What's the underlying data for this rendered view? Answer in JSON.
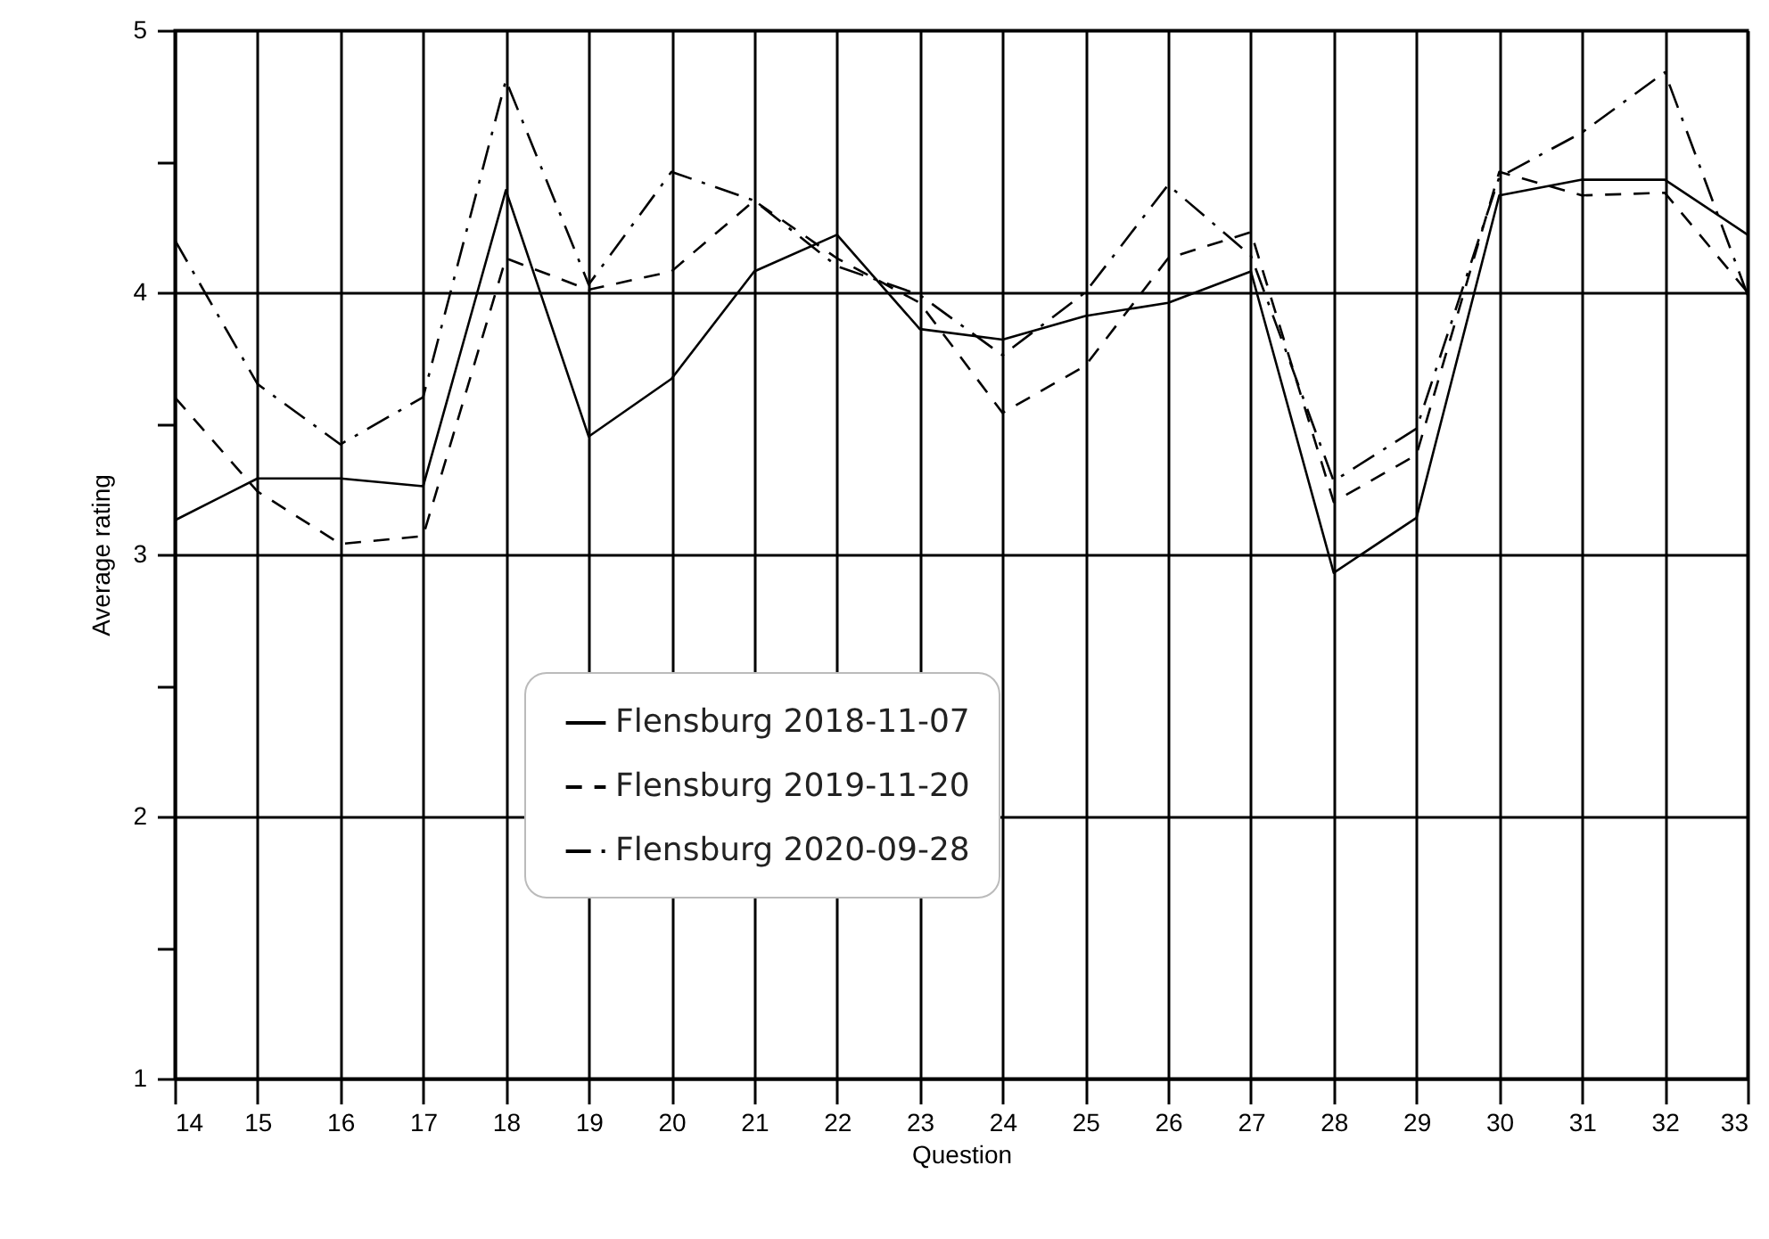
{
  "chart_data": {
    "type": "line",
    "xlabel": "Question",
    "ylabel": "Average rating",
    "x": [
      14,
      15,
      16,
      17,
      18,
      19,
      20,
      21,
      22,
      23,
      24,
      25,
      26,
      27,
      28,
      29,
      30,
      31,
      32,
      33
    ],
    "xlim": [
      14,
      33
    ],
    "xticks": [
      14,
      15,
      16,
      17,
      18,
      19,
      20,
      21,
      22,
      23,
      24,
      25,
      26,
      27,
      28,
      29,
      30,
      31,
      32,
      33
    ],
    "ylim": [
      1,
      5
    ],
    "yticks": [
      1,
      {
        "value": 1.5,
        "label": null
      },
      2,
      {
        "value": 2.5,
        "label": null
      },
      3,
      {
        "value": 3.5,
        "label": null
      },
      4,
      {
        "value": 4.5,
        "label": null
      },
      5
    ],
    "grid": true,
    "legend": "bottom left",
    "marker": "none",
    "series": [
      {
        "name": "Flensburg 2018-11-07",
        "color": "#000000",
        "line_style": "solid",
        "values": [
          3.13,
          3.29,
          3.29,
          3.26,
          4.39,
          3.45,
          3.67,
          4.08,
          4.22,
          3.86,
          3.82,
          3.91,
          3.96,
          4.08,
          2.93,
          3.14,
          4.37,
          4.43,
          4.43,
          4.22
        ]
      },
      {
        "name": "Flensburg 2019-11-20",
        "color": "#000000",
        "line_style": "dashed",
        "values": [
          3.6,
          3.24,
          3.04,
          3.07,
          4.13,
          4.01,
          4.08,
          4.35,
          4.13,
          3.96,
          3.54,
          3.72,
          4.13,
          4.23,
          3.2,
          3.38,
          4.46,
          4.37,
          4.38,
          4.0
        ]
      },
      {
        "name": "Flensburg 2020-09-28",
        "color": "#000000",
        "line_style": "dashed",
        "values": [
          4.2,
          3.65,
          3.42,
          3.6,
          4.81,
          4.03,
          4.46,
          4.35,
          4.1,
          3.99,
          3.76,
          4.0,
          4.41,
          4.14,
          3.28,
          3.48,
          4.44,
          4.61,
          4.84,
          3.99
        ]
      }
    ]
  }
}
